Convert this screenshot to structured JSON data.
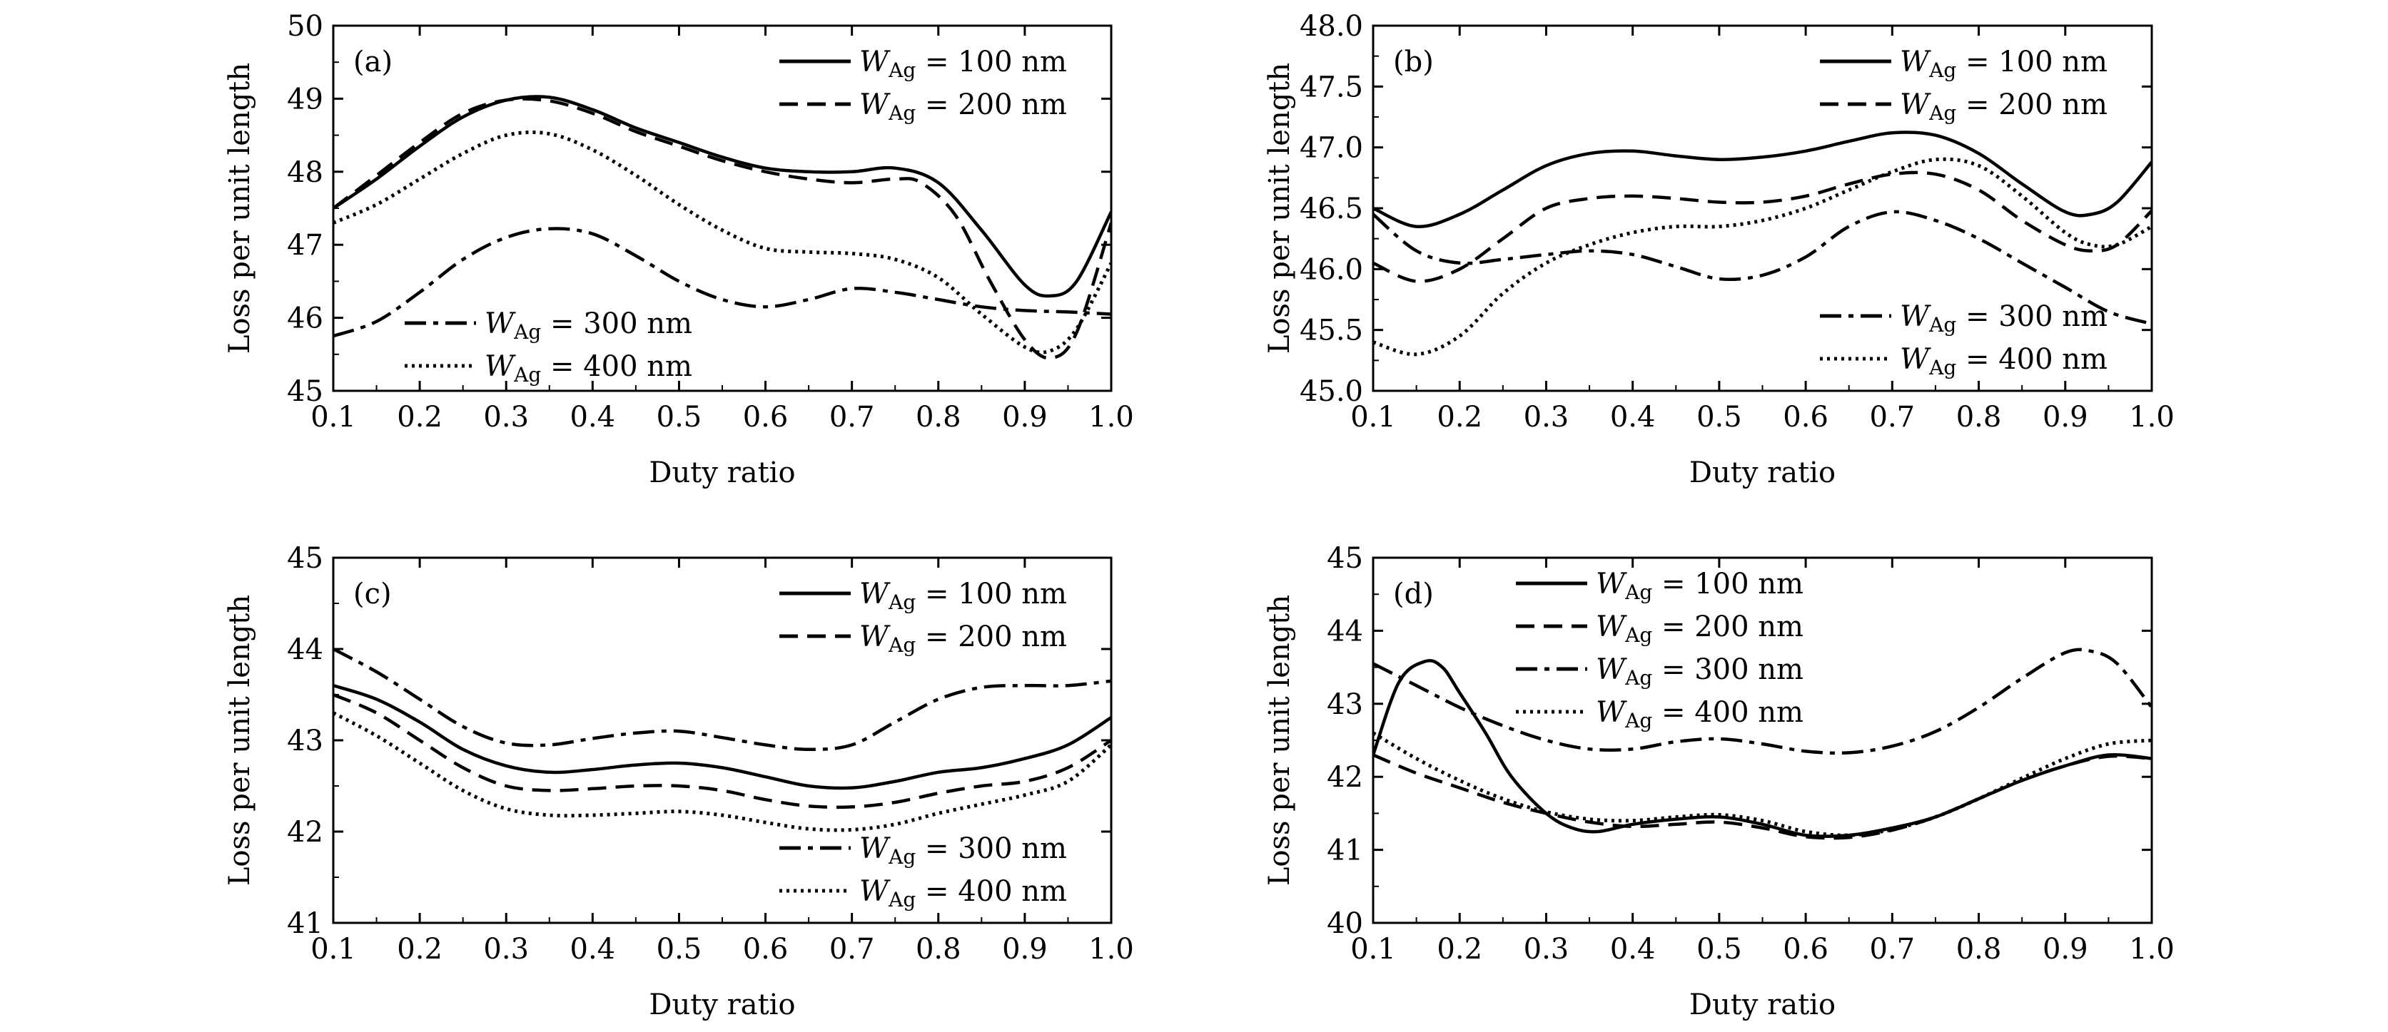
{
  "chart_data": [
    {
      "type": "line",
      "panel_label": "(a)",
      "xlabel": "Duty ratio",
      "ylabel": "Loss per unit length",
      "xlim": [
        0.1,
        1.0
      ],
      "ylim": [
        45,
        50
      ],
      "xticks": [
        "0.1",
        "0.2",
        "0.3",
        "0.4",
        "0.5",
        "0.6",
        "0.7",
        "0.8",
        "0.9",
        "1.0"
      ],
      "yticks": [
        "45",
        "46",
        "47",
        "48",
        "49",
        "50"
      ],
      "legend_groups": [
        {
          "position": "top-right",
          "items": [
            0,
            1
          ]
        },
        {
          "position": "bottom-left",
          "items": [
            2,
            3
          ]
        }
      ],
      "series": [
        {
          "name": "100 nm",
          "style": "solid",
          "x": [
            0.1,
            0.15,
            0.2,
            0.25,
            0.3,
            0.35,
            0.4,
            0.45,
            0.5,
            0.55,
            0.6,
            0.65,
            0.7,
            0.75,
            0.8,
            0.85,
            0.9,
            0.93,
            0.96,
            1.0
          ],
          "y": [
            47.5,
            47.9,
            48.35,
            48.75,
            48.98,
            49.02,
            48.85,
            48.6,
            48.4,
            48.2,
            48.05,
            48.0,
            48.0,
            48.05,
            47.85,
            47.2,
            46.45,
            46.3,
            46.5,
            47.45
          ]
        },
        {
          "name": "200 nm",
          "style": "dashed",
          "x": [
            0.1,
            0.15,
            0.2,
            0.25,
            0.3,
            0.35,
            0.4,
            0.45,
            0.5,
            0.55,
            0.6,
            0.65,
            0.7,
            0.75,
            0.78,
            0.82,
            0.86,
            0.9,
            0.93,
            0.96,
            1.0
          ],
          "y": [
            47.5,
            47.95,
            48.4,
            48.8,
            48.98,
            48.97,
            48.8,
            48.55,
            48.35,
            48.15,
            48.0,
            47.9,
            47.85,
            47.9,
            47.85,
            47.4,
            46.5,
            45.7,
            45.45,
            45.8,
            47.3
          ]
        },
        {
          "name": "300 nm",
          "style": "dashdot",
          "x": [
            0.1,
            0.15,
            0.2,
            0.25,
            0.3,
            0.35,
            0.4,
            0.45,
            0.5,
            0.55,
            0.6,
            0.65,
            0.7,
            0.75,
            0.8,
            0.85,
            0.9,
            0.95,
            1.0
          ],
          "y": [
            45.75,
            45.95,
            46.35,
            46.8,
            47.1,
            47.22,
            47.15,
            46.85,
            46.5,
            46.25,
            46.15,
            46.25,
            46.4,
            46.35,
            46.25,
            46.15,
            46.1,
            46.08,
            46.05
          ]
        },
        {
          "name": "400 nm",
          "style": "dotted",
          "x": [
            0.1,
            0.15,
            0.2,
            0.25,
            0.3,
            0.35,
            0.4,
            0.45,
            0.5,
            0.55,
            0.6,
            0.65,
            0.7,
            0.75,
            0.8,
            0.85,
            0.9,
            0.93,
            0.96,
            1.0
          ],
          "y": [
            47.3,
            47.55,
            47.9,
            48.25,
            48.5,
            48.52,
            48.3,
            47.95,
            47.55,
            47.2,
            46.95,
            46.9,
            46.88,
            46.8,
            46.55,
            46.05,
            45.6,
            45.55,
            45.85,
            46.75
          ]
        }
      ]
    },
    {
      "type": "line",
      "panel_label": "(b)",
      "xlabel": "Duty ratio",
      "ylabel": "Loss per unit length",
      "xlim": [
        0.1,
        1.0
      ],
      "ylim": [
        45.0,
        48.0
      ],
      "xticks": [
        "0.1",
        "0.2",
        "0.3",
        "0.4",
        "0.5",
        "0.6",
        "0.7",
        "0.8",
        "0.9",
        "1.0"
      ],
      "yticks": [
        "45.0",
        "45.5",
        "46.0",
        "46.5",
        "47.0",
        "47.5",
        "48.0"
      ],
      "legend_groups": [
        {
          "position": "top-right",
          "items": [
            0,
            1
          ]
        },
        {
          "position": "bottom-right",
          "items": [
            2,
            3
          ]
        }
      ],
      "series": [
        {
          "name": "100 nm",
          "style": "solid",
          "x": [
            0.1,
            0.15,
            0.2,
            0.25,
            0.3,
            0.35,
            0.4,
            0.45,
            0.5,
            0.55,
            0.6,
            0.65,
            0.7,
            0.75,
            0.8,
            0.85,
            0.9,
            0.93,
            0.96,
            1.0
          ],
          "y": [
            46.5,
            46.35,
            46.45,
            46.65,
            46.85,
            46.95,
            46.97,
            46.93,
            46.9,
            46.92,
            46.97,
            47.05,
            47.12,
            47.1,
            46.95,
            46.7,
            46.47,
            46.45,
            46.55,
            46.88
          ]
        },
        {
          "name": "200 nm",
          "style": "dashed",
          "x": [
            0.1,
            0.15,
            0.2,
            0.25,
            0.3,
            0.35,
            0.4,
            0.45,
            0.5,
            0.55,
            0.6,
            0.65,
            0.7,
            0.75,
            0.8,
            0.85,
            0.9,
            0.93,
            0.96,
            1.0
          ],
          "y": [
            46.05,
            45.9,
            46.0,
            46.25,
            46.5,
            46.58,
            46.6,
            46.58,
            46.55,
            46.55,
            46.6,
            46.7,
            46.78,
            46.78,
            46.65,
            46.4,
            46.2,
            46.15,
            46.2,
            46.48
          ]
        },
        {
          "name": "300 nm",
          "style": "dashdot",
          "x": [
            0.1,
            0.15,
            0.2,
            0.25,
            0.3,
            0.35,
            0.4,
            0.45,
            0.5,
            0.55,
            0.6,
            0.65,
            0.7,
            0.75,
            0.8,
            0.85,
            0.9,
            0.95,
            1.0
          ],
          "y": [
            46.45,
            46.15,
            46.05,
            46.08,
            46.12,
            46.15,
            46.12,
            46.02,
            45.92,
            45.95,
            46.1,
            46.35,
            46.47,
            46.4,
            46.25,
            46.05,
            45.85,
            45.65,
            45.55
          ]
        },
        {
          "name": "400 nm",
          "style": "dotted",
          "x": [
            0.1,
            0.15,
            0.2,
            0.25,
            0.3,
            0.35,
            0.4,
            0.45,
            0.5,
            0.55,
            0.6,
            0.65,
            0.7,
            0.75,
            0.8,
            0.85,
            0.9,
            0.93,
            0.96,
            1.0
          ],
          "y": [
            45.4,
            45.3,
            45.45,
            45.8,
            46.05,
            46.2,
            46.3,
            46.35,
            46.35,
            46.4,
            46.5,
            46.65,
            46.8,
            46.9,
            46.85,
            46.6,
            46.3,
            46.2,
            46.2,
            46.35
          ]
        }
      ]
    },
    {
      "type": "line",
      "panel_label": "(c)",
      "xlabel": "Duty ratio",
      "ylabel": "Loss per unit length",
      "xlim": [
        0.1,
        1.0
      ],
      "ylim": [
        41,
        45
      ],
      "xticks": [
        "0.1",
        "0.2",
        "0.3",
        "0.4",
        "0.5",
        "0.6",
        "0.7",
        "0.8",
        "0.9",
        "1.0"
      ],
      "yticks": [
        "41",
        "42",
        "43",
        "44",
        "45"
      ],
      "legend_groups": [
        {
          "position": "top-right",
          "items": [
            0,
            1
          ]
        },
        {
          "position": "bottom-right",
          "items": [
            2,
            3
          ]
        }
      ],
      "series": [
        {
          "name": "100 nm",
          "style": "solid",
          "x": [
            0.1,
            0.15,
            0.2,
            0.25,
            0.3,
            0.35,
            0.4,
            0.45,
            0.5,
            0.55,
            0.6,
            0.65,
            0.7,
            0.75,
            0.8,
            0.85,
            0.9,
            0.95,
            1.0
          ],
          "y": [
            43.6,
            43.45,
            43.2,
            42.9,
            42.72,
            42.65,
            42.68,
            42.73,
            42.75,
            42.7,
            42.6,
            42.5,
            42.48,
            42.55,
            42.65,
            42.7,
            42.8,
            42.95,
            43.25
          ]
        },
        {
          "name": "200 nm",
          "style": "dashed",
          "x": [
            0.1,
            0.15,
            0.2,
            0.25,
            0.3,
            0.35,
            0.4,
            0.45,
            0.5,
            0.55,
            0.6,
            0.65,
            0.7,
            0.75,
            0.8,
            0.85,
            0.9,
            0.95,
            1.0
          ],
          "y": [
            43.5,
            43.3,
            43.0,
            42.7,
            42.5,
            42.45,
            42.47,
            42.5,
            42.5,
            42.45,
            42.35,
            42.28,
            42.27,
            42.32,
            42.42,
            42.5,
            42.55,
            42.7,
            43.0
          ]
        },
        {
          "name": "300 nm",
          "style": "dashdot",
          "x": [
            0.1,
            0.15,
            0.2,
            0.25,
            0.3,
            0.35,
            0.4,
            0.45,
            0.5,
            0.55,
            0.6,
            0.65,
            0.7,
            0.75,
            0.8,
            0.85,
            0.9,
            0.95,
            1.0
          ],
          "y": [
            44.0,
            43.75,
            43.45,
            43.15,
            42.97,
            42.95,
            43.02,
            43.08,
            43.1,
            43.03,
            42.95,
            42.9,
            42.95,
            43.2,
            43.45,
            43.58,
            43.6,
            43.6,
            43.65
          ]
        },
        {
          "name": "400 nm",
          "style": "dotted",
          "x": [
            0.1,
            0.15,
            0.2,
            0.25,
            0.3,
            0.35,
            0.4,
            0.45,
            0.5,
            0.55,
            0.6,
            0.65,
            0.7,
            0.75,
            0.8,
            0.85,
            0.9,
            0.95,
            1.0
          ],
          "y": [
            43.3,
            43.05,
            42.75,
            42.45,
            42.25,
            42.18,
            42.18,
            42.2,
            42.22,
            42.18,
            42.1,
            42.03,
            42.02,
            42.08,
            42.2,
            42.3,
            42.4,
            42.55,
            42.95
          ]
        }
      ]
    },
    {
      "type": "line",
      "panel_label": "(d)",
      "xlabel": "Duty ratio",
      "ylabel": "Loss per unit length",
      "xlim": [
        0.1,
        1.0
      ],
      "ylim": [
        40,
        45
      ],
      "xticks": [
        "0.1",
        "0.2",
        "0.3",
        "0.4",
        "0.5",
        "0.6",
        "0.7",
        "0.8",
        "0.9",
        "1.0"
      ],
      "yticks": [
        "40",
        "41",
        "42",
        "43",
        "44",
        "45"
      ],
      "legend_groups": [
        {
          "position": "top-left",
          "items": [
            0,
            1,
            2,
            3
          ]
        }
      ],
      "series": [
        {
          "name": "100 nm",
          "style": "solid",
          "x": [
            0.1,
            0.13,
            0.16,
            0.18,
            0.2,
            0.23,
            0.26,
            0.3,
            0.33,
            0.36,
            0.4,
            0.45,
            0.5,
            0.55,
            0.6,
            0.65,
            0.7,
            0.75,
            0.8,
            0.85,
            0.9,
            0.95,
            1.0
          ],
          "y": [
            42.3,
            43.3,
            43.58,
            43.5,
            43.15,
            42.6,
            42.0,
            41.5,
            41.3,
            41.25,
            41.35,
            41.42,
            41.45,
            41.35,
            41.2,
            41.2,
            41.3,
            41.45,
            41.7,
            41.95,
            42.15,
            42.3,
            42.25
          ]
        },
        {
          "name": "200 nm",
          "style": "dashed",
          "x": [
            0.1,
            0.15,
            0.2,
            0.25,
            0.3,
            0.35,
            0.4,
            0.45,
            0.5,
            0.55,
            0.6,
            0.65,
            0.7,
            0.75,
            0.8,
            0.85,
            0.9,
            0.95,
            1.0
          ],
          "y": [
            42.3,
            42.05,
            41.85,
            41.65,
            41.5,
            41.38,
            41.32,
            41.35,
            41.38,
            41.3,
            41.18,
            41.17,
            41.27,
            41.45,
            41.7,
            41.95,
            42.15,
            42.28,
            42.25
          ]
        },
        {
          "name": "300 nm",
          "style": "dashdot",
          "x": [
            0.1,
            0.15,
            0.2,
            0.25,
            0.3,
            0.35,
            0.4,
            0.45,
            0.5,
            0.55,
            0.6,
            0.65,
            0.7,
            0.75,
            0.8,
            0.85,
            0.9,
            0.93,
            0.96,
            1.0
          ],
          "y": [
            43.55,
            43.25,
            42.95,
            42.7,
            42.5,
            42.38,
            42.38,
            42.48,
            42.52,
            42.45,
            42.35,
            42.33,
            42.42,
            42.62,
            42.95,
            43.35,
            43.7,
            43.72,
            43.55,
            42.95
          ]
        },
        {
          "name": "400 nm",
          "style": "dotted",
          "x": [
            0.1,
            0.15,
            0.2,
            0.25,
            0.3,
            0.35,
            0.4,
            0.45,
            0.5,
            0.55,
            0.6,
            0.65,
            0.7,
            0.75,
            0.8,
            0.85,
            0.9,
            0.95,
            1.0
          ],
          "y": [
            42.6,
            42.25,
            41.95,
            41.7,
            41.52,
            41.42,
            41.4,
            41.45,
            41.48,
            41.4,
            41.25,
            41.2,
            41.28,
            41.45,
            41.7,
            41.98,
            42.25,
            42.45,
            42.5
          ]
        }
      ]
    }
  ]
}
